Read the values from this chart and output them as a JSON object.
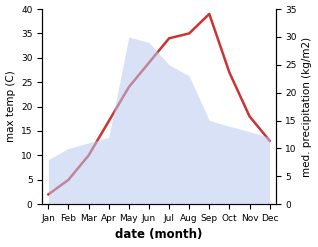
{
  "months": [
    "Jan",
    "Feb",
    "Mar",
    "Apr",
    "May",
    "Jun",
    "Jul",
    "Aug",
    "Sep",
    "Oct",
    "Nov",
    "Dec"
  ],
  "temperature": [
    2,
    5,
    10,
    17,
    24,
    29,
    34,
    35,
    39,
    27,
    18,
    13
  ],
  "precipitation": [
    8,
    10,
    11,
    12,
    30,
    29,
    25,
    23,
    15,
    14,
    13,
    12
  ],
  "temp_color": "#cc3333",
  "precip_fill_color": "#b8caf0",
  "ylabel_left": "max temp (C)",
  "ylabel_right": "med. precipitation (kg/m2)",
  "xlabel": "date (month)",
  "ylim_left": [
    0,
    40
  ],
  "ylim_right": [
    0,
    35
  ],
  "temp_linewidth": 1.8,
  "label_fontsize": 7.5,
  "tick_fontsize": 6.5,
  "xlabel_fontsize": 8.5
}
